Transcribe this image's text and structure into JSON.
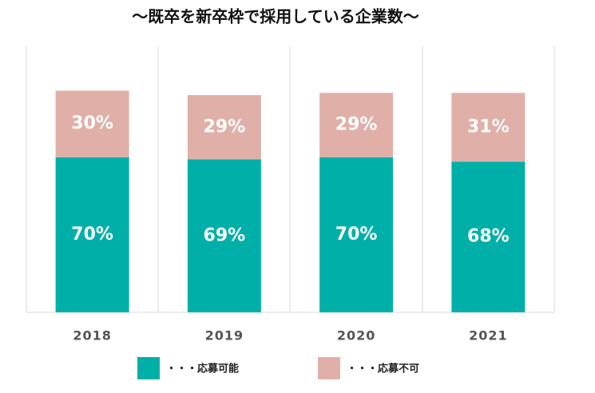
{
  "chart_data": {
    "type": "stacked-bar",
    "title": "～既卒を新卒枠で採用している企業数～",
    "categories": [
      "2018",
      "2019",
      "2020",
      "2021"
    ],
    "series": [
      {
        "name": "・・・応募可能",
        "color": "#00b0a8",
        "values": [
          70,
          69,
          70,
          68
        ],
        "value_labels": [
          "70%",
          "69%",
          "70%",
          "68%"
        ]
      },
      {
        "name": "・・・応募不可",
        "color": "#e0b0a8",
        "values": [
          30,
          29,
          29,
          31
        ],
        "value_labels": [
          "30%",
          "29%",
          "29%",
          "31%"
        ]
      }
    ],
    "ylim": [
      0,
      120
    ]
  }
}
